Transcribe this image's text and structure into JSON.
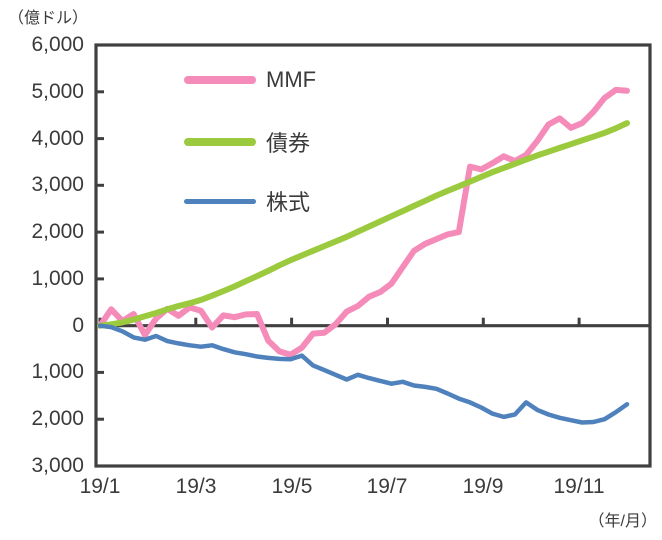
{
  "colors": {
    "axis": "#404040",
    "text": "#3b3b3b",
    "background": "#ffffff",
    "mmf_pink": "#f58bb8",
    "bond_green": "#9bca3e",
    "equity_blue": "#4f81bd"
  },
  "chart_data": {
    "type": "line",
    "title": "",
    "y_axis_title": "（億ドル）",
    "x_axis_title": "（年/月）",
    "x_tick_labels": [
      "19/1",
      "19/3",
      "19/5",
      "19/7",
      "19/9",
      "19/11"
    ],
    "y_ticks": [
      6000,
      5000,
      4000,
      3000,
      2000,
      1000,
      0,
      -1000,
      -2000,
      -3000
    ],
    "y_tick_labels": [
      "6,000",
      "5,000",
      "4,000",
      "3,000",
      "2,000",
      "1,000",
      "0",
      "1,000",
      "2,000",
      "3,000"
    ],
    "ylim": [
      -3000,
      6000
    ],
    "grid": false,
    "legend_position": "inside-top-left",
    "series": [
      {
        "name": "MMF",
        "color": "#f58bb8",
        "values": [
          0,
          350,
          100,
          250,
          -200,
          150,
          360,
          210,
          390,
          320,
          -40,
          220,
          180,
          240,
          250,
          -320,
          -550,
          -620,
          -470,
          -170,
          -150,
          30,
          300,
          420,
          620,
          720,
          900,
          1250,
          1600,
          1750,
          1850,
          1950,
          2000,
          3400,
          3340,
          3470,
          3620,
          3520,
          3650,
          3950,
          4300,
          4430,
          4230,
          4330,
          4570,
          4870,
          5040,
          5020
        ]
      },
      {
        "name": "債券",
        "color": "#9bca3e",
        "values": [
          0,
          30,
          70,
          130,
          200,
          270,
          350,
          420,
          480,
          550,
          640,
          740,
          840,
          950,
          1060,
          1170,
          1290,
          1400,
          1500,
          1600,
          1700,
          1800,
          1900,
          2010,
          2120,
          2230,
          2340,
          2450,
          2560,
          2670,
          2780,
          2880,
          2980,
          3080,
          3180,
          3280,
          3370,
          3460,
          3550,
          3640,
          3720,
          3800,
          3880,
          3960,
          4040,
          4120,
          4220,
          4330
        ]
      },
      {
        "name": "株式",
        "color": "#4f81bd",
        "values": [
          0,
          -30,
          -120,
          -250,
          -300,
          -220,
          -330,
          -380,
          -420,
          -450,
          -420,
          -500,
          -570,
          -610,
          -660,
          -690,
          -710,
          -720,
          -640,
          -850,
          -950,
          -1050,
          -1150,
          -1050,
          -1120,
          -1180,
          -1240,
          -1200,
          -1280,
          -1310,
          -1350,
          -1450,
          -1560,
          -1640,
          -1750,
          -1880,
          -1950,
          -1900,
          -1640,
          -1800,
          -1900,
          -1970,
          -2020,
          -2070,
          -2060,
          -2000,
          -1850,
          -1680
        ]
      }
    ]
  }
}
